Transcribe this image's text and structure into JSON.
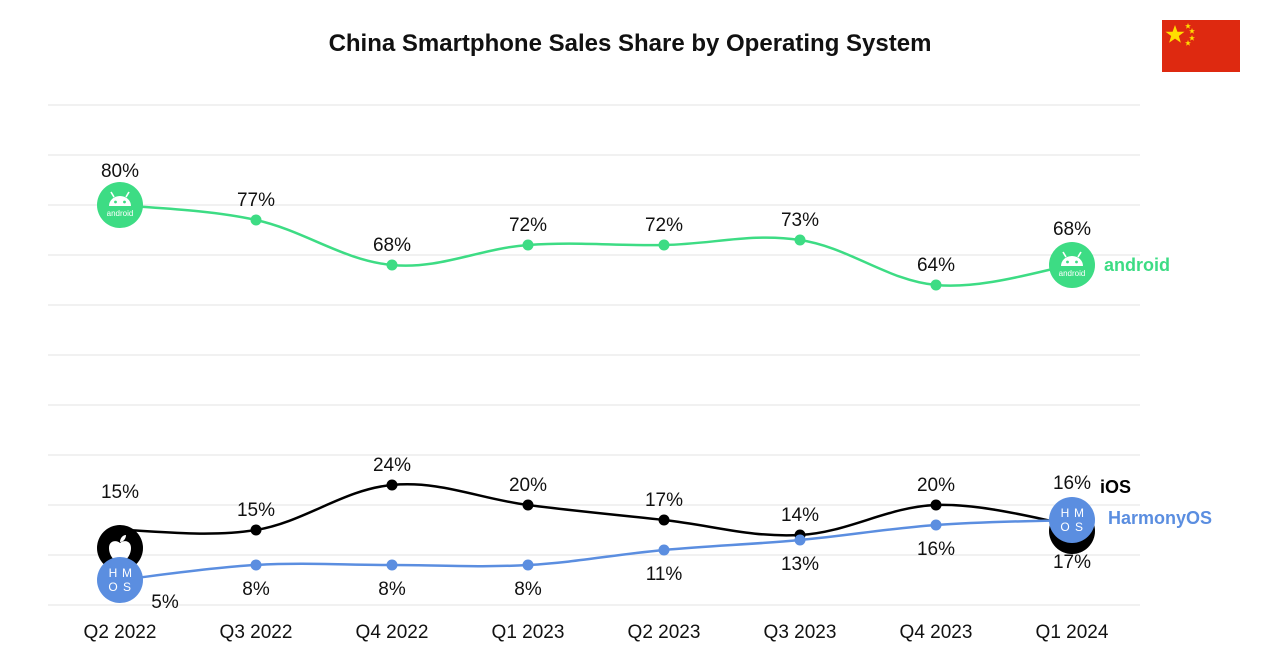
{
  "chart_data": {
    "type": "line",
    "title": "China Smartphone Sales Share by Operating System",
    "categories": [
      "Q2 2022",
      "Q3 2022",
      "Q4 2022",
      "Q1 2023",
      "Q2 2023",
      "Q3 2023",
      "Q4 2023",
      "Q1 2024"
    ],
    "ylim": [
      0,
      100
    ],
    "grid": true,
    "series": [
      {
        "name": "android",
        "values": [
          80,
          77,
          68,
          72,
          72,
          73,
          64,
          68
        ],
        "labels": [
          "80%",
          "77%",
          "68%",
          "72%",
          "72%",
          "73%",
          "64%",
          "68%"
        ],
        "color": "#3ddc84",
        "icon": "android-logo-icon"
      },
      {
        "name": "iOS",
        "values": [
          15,
          15,
          24,
          20,
          17,
          14,
          20,
          16
        ],
        "labels": [
          "15%",
          "15%",
          "24%",
          "20%",
          "17%",
          "14%",
          "20%",
          "16%"
        ],
        "color": "#000000",
        "icon": "apple-logo-icon"
      },
      {
        "name": "HarmonyOS",
        "values": [
          5,
          8,
          8,
          8,
          11,
          13,
          16,
          17
        ],
        "labels": [
          "5%",
          "8%",
          "8%",
          "8%",
          "11%",
          "13%",
          "16%",
          "17%"
        ],
        "color": "#5b8ee0",
        "icon": "harmonyos-logo-icon"
      }
    ]
  },
  "flag": {
    "icon": "china-flag-icon",
    "color": "#de2910",
    "star_color": "#ffde00"
  },
  "logos": {
    "android_text": "android",
    "harmony_letters": [
      "H",
      "M",
      "O",
      "S"
    ]
  }
}
